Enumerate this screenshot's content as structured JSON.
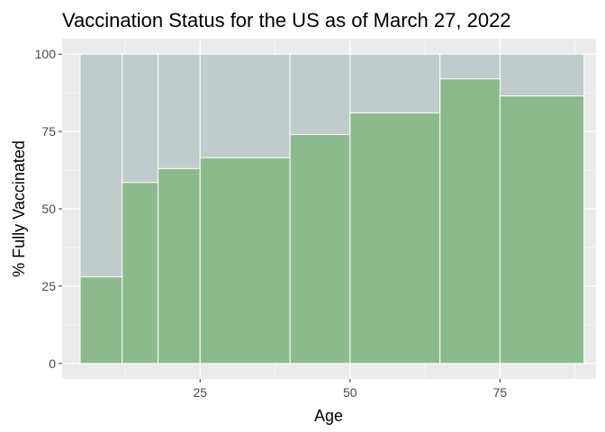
{
  "chart_data": {
    "type": "bar",
    "title": "Vaccination Status for the US as of March 27, 2022",
    "xlabel": "Age",
    "ylabel": "% Fully Vaccinated",
    "xlim": [
      2,
      91
    ],
    "ylim": [
      -5,
      105
    ],
    "x_ticks": [
      25,
      50,
      75
    ],
    "y_ticks": [
      0,
      25,
      50,
      75,
      100
    ],
    "grid": true,
    "legend": "none",
    "colors": {
      "panel_background": "#ebebeb",
      "grid_line": "#ffffff",
      "unvaccinated": "#c0cccc",
      "vaccinated": "#8cba8c",
      "bar_outline": "#ffffff",
      "tick_mark": "#333333"
    },
    "bins": [
      {
        "x_start": 5,
        "x_end": 12,
        "vaccinated": 28,
        "total": 100
      },
      {
        "x_start": 12,
        "x_end": 18,
        "vaccinated": 58.5,
        "total": 100
      },
      {
        "x_start": 18,
        "x_end": 25,
        "vaccinated": 63,
        "total": 100
      },
      {
        "x_start": 25,
        "x_end": 40,
        "vaccinated": 66.5,
        "total": 100
      },
      {
        "x_start": 40,
        "x_end": 50,
        "vaccinated": 74,
        "total": 100
      },
      {
        "x_start": 50,
        "x_end": 65,
        "vaccinated": 81,
        "total": 100
      },
      {
        "x_start": 65,
        "x_end": 75,
        "vaccinated": 92,
        "total": 100
      },
      {
        "x_start": 75,
        "x_end": 89,
        "vaccinated": 86.5,
        "total": 100
      }
    ]
  }
}
